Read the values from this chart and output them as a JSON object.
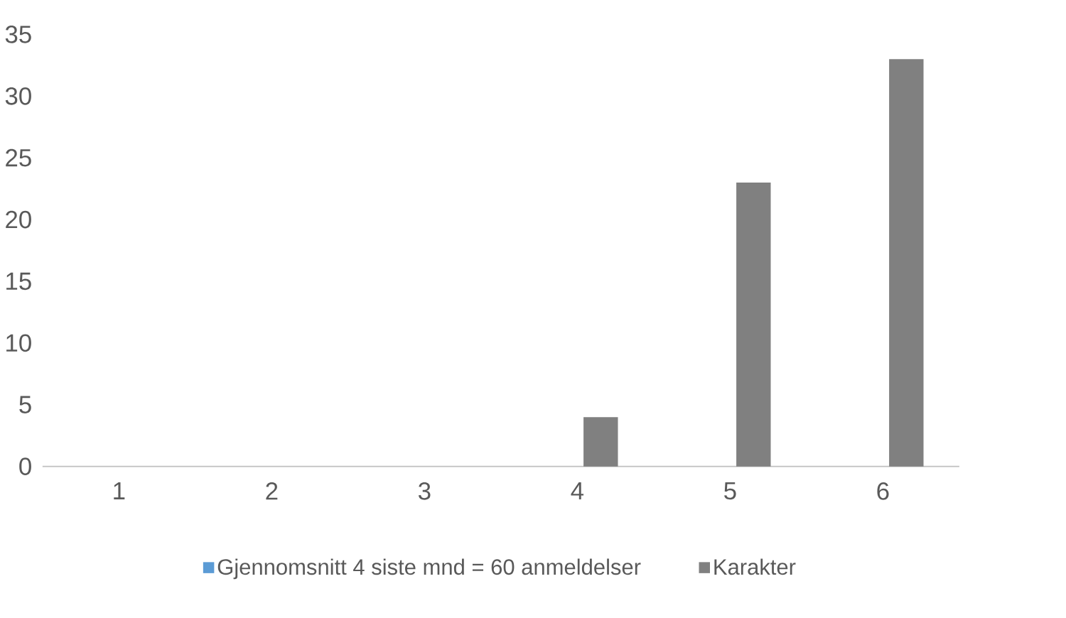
{
  "chart_data": {
    "type": "bar",
    "categories": [
      "1",
      "2",
      "3",
      "4",
      "5",
      "6"
    ],
    "series": [
      {
        "name": "Gjennomsnitt 4 siste mnd = 60 anmeldelser",
        "color": "#5b9bd5",
        "values": [
          null,
          null,
          null,
          null,
          null,
          null
        ]
      },
      {
        "name": "Karakter",
        "color": "#808080",
        "values": [
          0,
          0,
          0,
          4,
          23,
          33
        ]
      }
    ],
    "ylim": [
      0,
      35
    ],
    "yticks": [
      0,
      5,
      10,
      15,
      20,
      25,
      30,
      35
    ],
    "legend": "bottom"
  }
}
